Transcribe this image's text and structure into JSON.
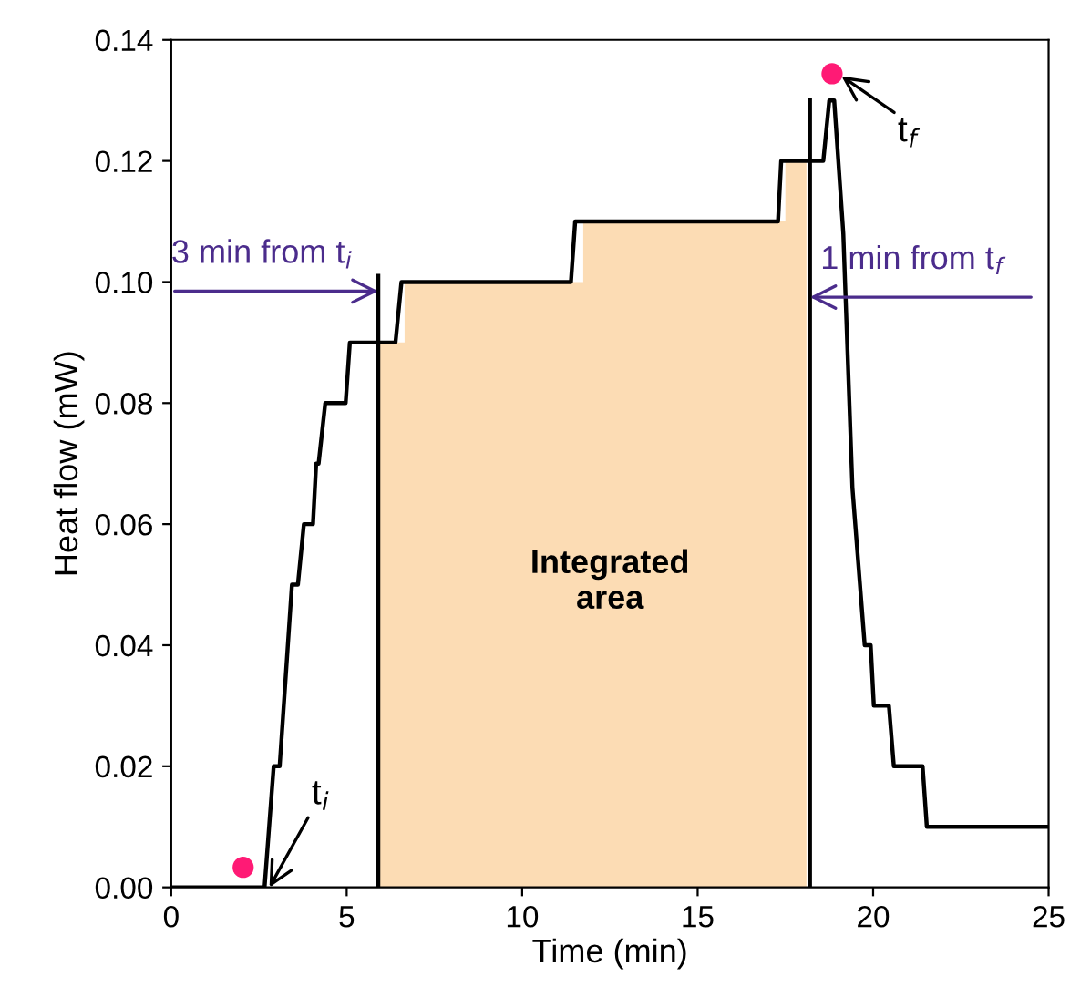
{
  "chart_data": {
    "type": "line",
    "xlabel": "Time (min)",
    "ylabel": "Heat flow (mW)",
    "xlim": [
      0,
      25
    ],
    "xticks": [
      0,
      5,
      10,
      15,
      20,
      25
    ],
    "ylim": [
      0,
      0.14
    ],
    "yticks": [
      {
        "value": 0,
        "label": "0.00"
      },
      0.02,
      0.04,
      0.06,
      0.08,
      {
        "value": 0.1,
        "label": "0.10"
      },
      0.12,
      0.14
    ],
    "grid": false,
    "legend": false,
    "series": [
      {
        "type": "area",
        "color": "#fcdcb4",
        "x": [
          5.95,
          6.65,
          11.74,
          17.5,
          18.1
        ],
        "values": [
          0.09,
          0.1,
          0.11,
          0.12,
          0.12
        ]
      },
      {
        "color": "#000000",
        "x": [
          0,
          2.66,
          2.92,
          3.09,
          3.44,
          3.61,
          3.78,
          4.04,
          4.13,
          4.2,
          4.39,
          4.97,
          5.09,
          6.39,
          6.56,
          11.39,
          11.51,
          17.29,
          17.38,
          18.58,
          18.75,
          18.89,
          19.15,
          19.41,
          19.76,
          19.93,
          20.02,
          20.45,
          20.59,
          21.41,
          21.53,
          25
        ],
        "values": [
          0,
          0,
          0.02,
          0.02,
          0.05,
          0.05,
          0.06,
          0.06,
          0.07,
          0.07,
          0.08,
          0.08,
          0.09,
          0.09,
          0.1,
          0.1,
          0.11,
          0.11,
          0.12,
          0.12,
          0.13,
          0.13,
          0.108,
          0.066,
          0.04,
          0.04,
          0.03,
          0.03,
          0.02,
          0.02,
          0.01,
          0.01
        ]
      },
      {
        "color": "#000000",
        "x": [
          5.9,
          5.9
        ],
        "values": [
          0,
          0.101
        ]
      },
      {
        "color": "#000000",
        "x": [
          18.2,
          18.2
        ],
        "values": [
          0,
          0.13
        ]
      },
      {
        "type": "scatter",
        "color": "#ff1a75",
        "marker": "circle",
        "x": [
          2.05,
          18.83
        ],
        "values": [
          0.0033,
          0.1344
        ]
      }
    ],
    "annotations": [
      {
        "text": "3 min from t$_{i}$",
        "x": 5.9,
        "y": 0.0985
      },
      {
        "text": "1 min from t$_{f}$",
        "x": 18.2,
        "y": 0.0975
      },
      {
        "text": "t$_{i}$",
        "x": 2.8,
        "y": 0.0
      },
      {
        "text": "t$_{f}$",
        "x": 19.1,
        "y": 0.134
      },
      "Integrated\narea"
    ]
  }
}
